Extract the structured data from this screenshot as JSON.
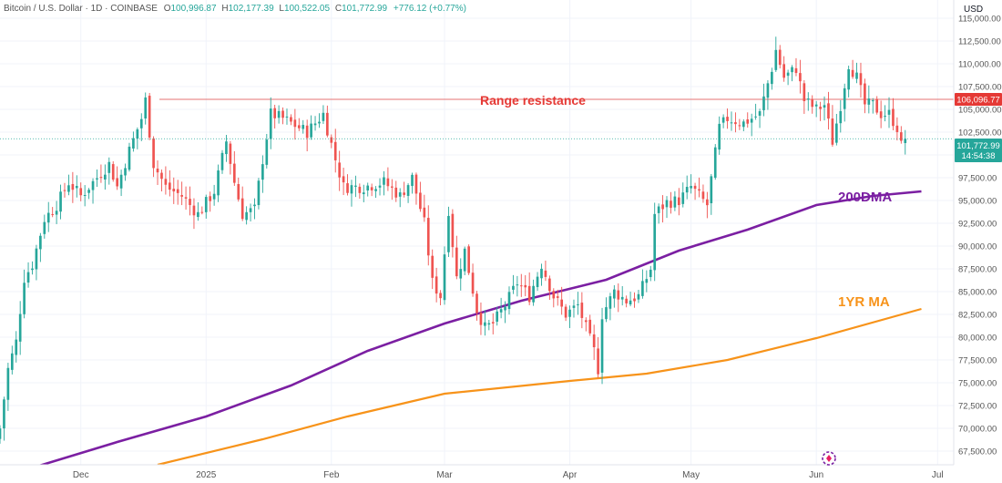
{
  "header": {
    "symbol": "Bitcoin / U.S. Dollar · 1D · COINBASE",
    "o_label": "O",
    "o_value": "100,996.87",
    "h_label": "H",
    "h_value": "102,177.39",
    "l_label": "L",
    "l_value": "100,522.05",
    "c_label": "C",
    "c_value": "101,772.99",
    "change": "+776.12 (+0.77%)"
  },
  "currency": "USD",
  "price_label": {
    "value": "101,772.99",
    "countdown": "14:54:38"
  },
  "resistance_label": "106,096.77",
  "annotations": {
    "range_resistance": "Range resistance",
    "ma200": "200DMA",
    "ma1yr": "1YR MA"
  },
  "colors": {
    "up": "#26a69a",
    "down": "#ef5350",
    "ma200": "#7b1fa2",
    "ma1yr": "#f7931a",
    "resistance": "#e57373",
    "last_price": "#26a69a"
  },
  "chart_data": {
    "type": "candlestick",
    "title": "",
    "x_ticks": [
      {
        "label": "Dec",
        "date": "2024-12-01"
      },
      {
        "label": "2025",
        "date": "2025-01-01"
      },
      {
        "label": "Feb",
        "date": "2025-02-01"
      },
      {
        "label": "Mar",
        "date": "2025-03-01"
      },
      {
        "label": "Apr",
        "date": "2025-04-01"
      },
      {
        "label": "May",
        "date": "2025-05-01"
      },
      {
        "label": "Jun",
        "date": "2025-06-01"
      },
      {
        "label": "Jul",
        "date": "2025-07-01"
      }
    ],
    "y_ticks": [
      "115,000.00",
      "112,500.00",
      "110,000.00",
      "107,500.00",
      "105,000.00",
      "102,500.00",
      "100,000.00",
      "97,500.00",
      "95,000.00",
      "92,500.00",
      "90,000.00",
      "87,500.00",
      "85,000.00",
      "82,500.00",
      "80,000.00",
      "77,500.00",
      "75,000.00",
      "72,500.00",
      "70,000.00",
      "67,500.00"
    ],
    "y_range": [
      66000,
      117000
    ],
    "date_range": [
      "2024-11-11",
      "2025-07-05"
    ],
    "resistance_level": 106096.77,
    "last_close": 101772.99,
    "close_anchors": [
      [
        "2024-11-11",
        70000
      ],
      [
        "2024-11-13",
        76500
      ],
      [
        "2024-11-15",
        79500
      ],
      [
        "2024-11-17",
        86500
      ],
      [
        "2024-11-19",
        88000
      ],
      [
        "2024-11-22",
        93000
      ],
      [
        "2024-11-25",
        94500
      ],
      [
        "2024-11-28",
        97000
      ],
      [
        "2024-12-01",
        95500
      ],
      [
        "2024-12-05",
        97500
      ],
      [
        "2024-12-08",
        99000
      ],
      [
        "2024-12-10",
        96500
      ],
      [
        "2024-12-13",
        100500
      ],
      [
        "2024-12-16",
        104000
      ],
      [
        "2024-12-17",
        106000
      ],
      [
        "2024-12-19",
        99000
      ],
      [
        "2024-12-22",
        96500
      ],
      [
        "2024-12-26",
        95500
      ],
      [
        "2024-12-30",
        93500
      ],
      [
        "2025-01-03",
        96000
      ],
      [
        "2025-01-06",
        101500
      ],
      [
        "2025-01-08",
        97000
      ],
      [
        "2025-01-10",
        93500
      ],
      [
        "2025-01-13",
        94000
      ],
      [
        "2025-01-15",
        99500
      ],
      [
        "2025-01-17",
        104500
      ],
      [
        "2025-01-20",
        104000
      ],
      [
        "2025-01-22",
        103500
      ],
      [
        "2025-01-26",
        102500
      ],
      [
        "2025-01-30",
        104500
      ],
      [
        "2025-02-02",
        99500
      ],
      [
        "2025-02-04",
        96500
      ],
      [
        "2025-02-09",
        96500
      ],
      [
        "2025-02-14",
        97000
      ],
      [
        "2025-02-18",
        95500
      ],
      [
        "2025-02-21",
        97500
      ],
      [
        "2025-02-24",
        92500
      ],
      [
        "2025-02-26",
        86000
      ],
      [
        "2025-02-28",
        84500
      ],
      [
        "2025-03-02",
        94000
      ],
      [
        "2025-03-04",
        86500
      ],
      [
        "2025-03-06",
        89500
      ],
      [
        "2025-03-09",
        83000
      ],
      [
        "2025-03-11",
        81000
      ],
      [
        "2025-03-13",
        81500
      ],
      [
        "2025-03-16",
        83500
      ],
      [
        "2025-03-19",
        86000
      ],
      [
        "2025-03-22",
        84500
      ],
      [
        "2025-03-25",
        88000
      ],
      [
        "2025-03-28",
        84500
      ],
      [
        "2025-03-31",
        82500
      ],
      [
        "2025-04-03",
        83500
      ],
      [
        "2025-04-07",
        78500
      ],
      [
        "2025-04-08",
        76500
      ],
      [
        "2025-04-09",
        82500
      ],
      [
        "2025-04-12",
        85000
      ],
      [
        "2025-04-15",
        84000
      ],
      [
        "2025-04-18",
        84500
      ],
      [
        "2025-04-21",
        87500
      ],
      [
        "2025-04-22",
        93500
      ],
      [
        "2025-04-25",
        94800
      ],
      [
        "2025-04-28",
        95000
      ],
      [
        "2025-05-01",
        96500
      ],
      [
        "2025-05-05",
        94500
      ],
      [
        "2025-05-08",
        103000
      ],
      [
        "2025-05-10",
        104000
      ],
      [
        "2025-05-14",
        103500
      ],
      [
        "2025-05-18",
        104500
      ],
      [
        "2025-05-21",
        109500
      ],
      [
        "2025-05-22",
        111500
      ],
      [
        "2025-05-24",
        108500
      ],
      [
        "2025-05-27",
        109500
      ],
      [
        "2025-05-29",
        106000
      ],
      [
        "2025-06-01",
        105000
      ],
      [
        "2025-06-03",
        105500
      ],
      [
        "2025-06-05",
        101500
      ],
      [
        "2025-06-07",
        105500
      ],
      [
        "2025-06-09",
        110000
      ],
      [
        "2025-06-11",
        108500
      ],
      [
        "2025-06-13",
        105500
      ],
      [
        "2025-06-15",
        105500
      ],
      [
        "2025-06-17",
        104500
      ],
      [
        "2025-06-19",
        104500
      ],
      [
        "2025-06-21",
        103000
      ],
      [
        "2025-06-22",
        101000
      ],
      [
        "2025-06-23",
        101773
      ]
    ],
    "ma200_points": [
      [
        "2024-11-20",
        65800
      ],
      [
        "2024-12-10",
        68500
      ],
      [
        "2025-01-01",
        71300
      ],
      [
        "2025-01-22",
        74700
      ],
      [
        "2025-02-10",
        78500
      ],
      [
        "2025-03-01",
        81500
      ],
      [
        "2025-03-20",
        84000
      ],
      [
        "2025-04-10",
        86300
      ],
      [
        "2025-04-28",
        89500
      ],
      [
        "2025-05-15",
        91800
      ],
      [
        "2025-06-01",
        94500
      ],
      [
        "2025-06-15",
        95500
      ],
      [
        "2025-06-27",
        96000
      ]
    ],
    "ma1yr_points": [
      [
        "2024-12-20",
        66000
      ],
      [
        "2025-01-15",
        68800
      ],
      [
        "2025-02-05",
        71300
      ],
      [
        "2025-03-01",
        73800
      ],
      [
        "2025-04-01",
        75200
      ],
      [
        "2025-04-20",
        76000
      ],
      [
        "2025-05-10",
        77500
      ],
      [
        "2025-06-01",
        79900
      ],
      [
        "2025-06-27",
        83100
      ]
    ]
  }
}
